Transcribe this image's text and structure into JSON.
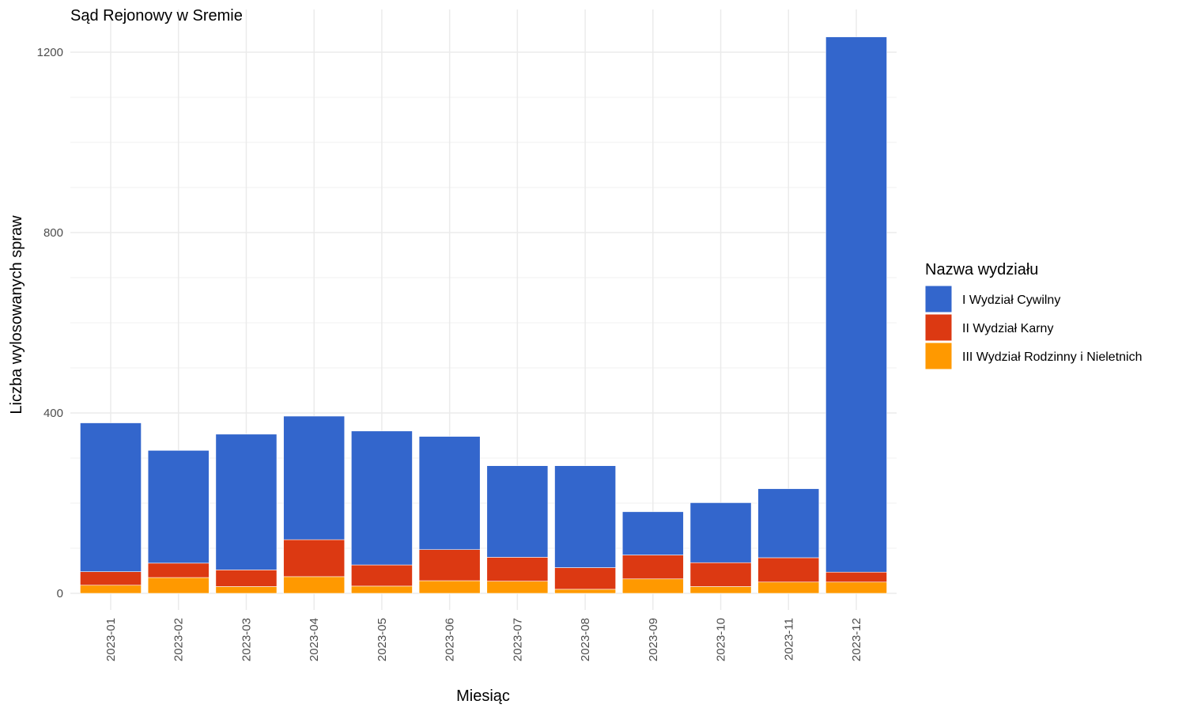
{
  "chart_data": {
    "type": "bar",
    "stacked": true,
    "title": "Sąd Rejonowy w Sremie",
    "xlabel": "Miesiąc",
    "ylabel": "Liczba wylosowanych spraw",
    "ylim": [
      0,
      1235
    ],
    "yticks": [
      0,
      400,
      800,
      1200
    ],
    "grid": true,
    "legend": {
      "title": "Nazwa wydziału",
      "position": "right"
    },
    "categories": [
      "2023-01",
      "2023-02",
      "2023-03",
      "2023-04",
      "2023-05",
      "2023-06",
      "2023-07",
      "2023-08",
      "2023-09",
      "2023-10",
      "2023-11",
      "2023-12"
    ],
    "series": [
      {
        "name": "III Wydział Rodzinny i Nieletnich",
        "color": "#FF9900",
        "values": [
          18,
          35,
          15,
          37,
          16,
          28,
          27,
          9,
          32,
          15,
          25,
          25
        ]
      },
      {
        "name": "II Wydział Karny",
        "color": "#DC3912",
        "values": [
          30,
          32,
          37,
          82,
          47,
          69,
          53,
          48,
          53,
          53,
          54,
          22
        ]
      },
      {
        "name": "I Wydział Cywilny",
        "color": "#3366CC",
        "values": [
          330,
          250,
          301,
          274,
          297,
          251,
          203,
          226,
          96,
          133,
          153,
          1187
        ]
      }
    ]
  }
}
